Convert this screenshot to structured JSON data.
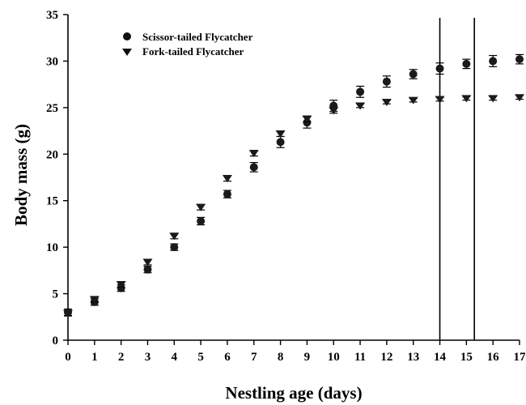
{
  "chart_data": {
    "type": "scatter",
    "xlabel": "Nestling age (days)",
    "ylabel": "Body mass (g)",
    "x_ticks": [
      "0",
      "1",
      "2",
      "3",
      "4",
      "5",
      "6",
      "7",
      "8",
      "9",
      "10",
      "11",
      "12",
      "13",
      "14",
      "15",
      "16",
      "17"
    ],
    "y_ticks": [
      "0",
      "5",
      "10",
      "15",
      "20",
      "25",
      "30",
      "35"
    ],
    "xlim": [
      0,
      17
    ],
    "ylim": [
      0,
      35
    ],
    "grid": false,
    "legend_position": "top-left",
    "vertical_lines_x": [
      14,
      15.3
    ],
    "series": [
      {
        "name": "Scissor-tailed Flycatcher",
        "marker": "circle",
        "x": [
          0,
          1,
          2,
          3,
          4,
          5,
          6,
          7,
          8,
          9,
          10,
          11,
          12,
          13,
          14,
          15,
          16,
          17
        ],
        "y": [
          3.0,
          4.1,
          5.6,
          7.6,
          10.0,
          12.8,
          15.7,
          18.6,
          21.3,
          23.4,
          25.2,
          26.7,
          27.8,
          28.6,
          29.2,
          29.7,
          30.0,
          30.2
        ],
        "err": [
          0.35,
          0.35,
          0.35,
          0.35,
          0.35,
          0.4,
          0.4,
          0.5,
          0.6,
          0.6,
          0.6,
          0.6,
          0.6,
          0.5,
          0.6,
          0.5,
          0.6,
          0.5
        ]
      },
      {
        "name": "Fork-tailed Flycatcher",
        "marker": "triangle-down",
        "x": [
          0,
          1,
          2,
          3,
          4,
          5,
          6,
          7,
          8,
          9,
          10,
          11,
          12,
          13,
          14,
          15,
          16,
          17
        ],
        "y": [
          2.9,
          4.4,
          6.0,
          8.4,
          11.2,
          14.3,
          17.4,
          20.1,
          22.2,
          23.8,
          24.7,
          25.2,
          25.6,
          25.8,
          25.9,
          26.0,
          26.0,
          26.1
        ],
        "err": [
          0.3,
          0.3,
          0.3,
          0.3,
          0.3,
          0.3,
          0.3,
          0.3,
          0.3,
          0.3,
          0.3,
          0.2,
          0.2,
          0.2,
          0.2,
          0.2,
          0.2,
          0.2
        ]
      }
    ]
  }
}
